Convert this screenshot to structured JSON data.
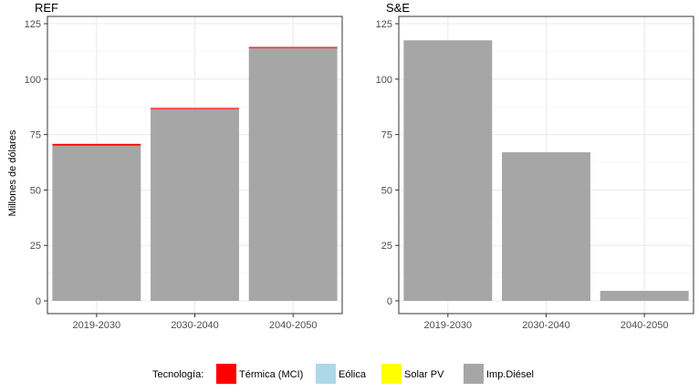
{
  "chart_data": {
    "type": "bar",
    "stacked": true,
    "ylabel": "Millones de dólares",
    "ylim": [
      0,
      125
    ],
    "yticks": [
      0,
      25,
      50,
      75,
      100,
      125
    ],
    "grid": true,
    "legend": {
      "title": "Tecnología:",
      "placement": "bottom",
      "entries": [
        {
          "name": "Térmica (MCI)",
          "color": "#ff0000"
        },
        {
          "name": "Eólica",
          "color": "#add8e6"
        },
        {
          "name": "Solar PV",
          "color": "#ffff00"
        },
        {
          "name": "Imp.Diésel",
          "color": "#a6a6a6"
        }
      ]
    },
    "panels": [
      {
        "title": "REF",
        "categories": [
          "2019-2030",
          "2030-2040",
          "2040-2050"
        ],
        "series": [
          {
            "name": "Imp.Diésel",
            "values": [
              70,
              86.5,
              114
            ]
          },
          {
            "name": "Térmica (MCI)",
            "values": [
              0.8,
              0.5,
              0.5
            ]
          },
          {
            "name": "Eólica",
            "values": [
              0,
              0,
              0
            ]
          },
          {
            "name": "Solar PV",
            "values": [
              0,
              0,
              0
            ]
          }
        ]
      },
      {
        "title": "S&E",
        "categories": [
          "2019-2030",
          "2030-2040",
          "2040-2050"
        ],
        "series": [
          {
            "name": "Imp.Diésel",
            "values": [
              117.5,
              67,
              4.5
            ]
          },
          {
            "name": "Térmica (MCI)",
            "values": [
              0,
              0,
              0
            ]
          },
          {
            "name": "Eólica",
            "values": [
              0,
              0,
              0
            ]
          },
          {
            "name": "Solar PV",
            "values": [
              0,
              0,
              0
            ]
          }
        ]
      }
    ]
  }
}
